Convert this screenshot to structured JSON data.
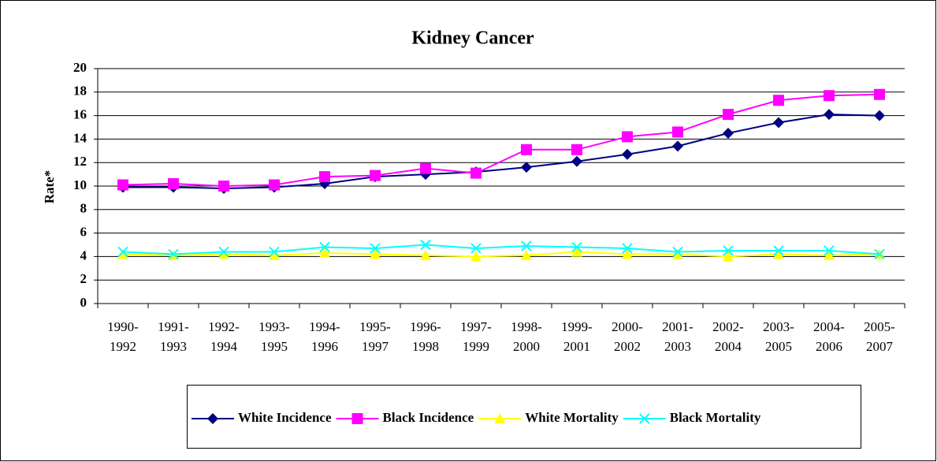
{
  "chart_data": {
    "type": "line",
    "title": "Kidney Cancer",
    "y_label": "Rate*",
    "categories": [
      "1990-1992",
      "1991-1993",
      "1992-1994",
      "1993-1995",
      "1994-1996",
      "1995-1997",
      "1996-1998",
      "1997-1999",
      "1998-2000",
      "1999-2001",
      "2000-2002",
      "2001-2003",
      "2002-2004",
      "2003-2005",
      "2004-2006",
      "2005-2007"
    ],
    "series": [
      {
        "name": "White Incidence",
        "color": "#000080",
        "marker": "diamond",
        "values": [
          9.9,
          9.9,
          9.8,
          9.9,
          10.2,
          10.8,
          11.0,
          11.2,
          11.6,
          12.1,
          12.7,
          13.4,
          14.5,
          15.4,
          16.1,
          16.0
        ]
      },
      {
        "name": "Black Incidence",
        "color": "#ff00ff",
        "marker": "square",
        "values": [
          10.1,
          10.2,
          10.0,
          10.1,
          10.8,
          10.9,
          11.5,
          11.1,
          13.1,
          13.1,
          14.2,
          14.6,
          16.1,
          17.3,
          17.7,
          17.8
        ]
      },
      {
        "name": "White Mortality",
        "color": "#ffff00",
        "marker": "triangle",
        "values": [
          4.2,
          4.1,
          4.2,
          4.1,
          4.3,
          4.2,
          4.1,
          4.0,
          4.1,
          4.4,
          4.2,
          4.2,
          4.0,
          4.2,
          4.1,
          4.2
        ]
      },
      {
        "name": "Black Mortality",
        "color": "#00ffff",
        "marker": "x",
        "values": [
          4.4,
          4.2,
          4.4,
          4.4,
          4.8,
          4.7,
          5.0,
          4.7,
          4.9,
          4.8,
          4.7,
          4.4,
          4.5,
          4.5,
          4.5,
          4.2
        ]
      }
    ],
    "ylim": [
      0,
      20
    ],
    "yticks": [
      0,
      2,
      4,
      6,
      8,
      10,
      12,
      14,
      16,
      18,
      20
    ],
    "grid": true,
    "legend": "bottom"
  }
}
